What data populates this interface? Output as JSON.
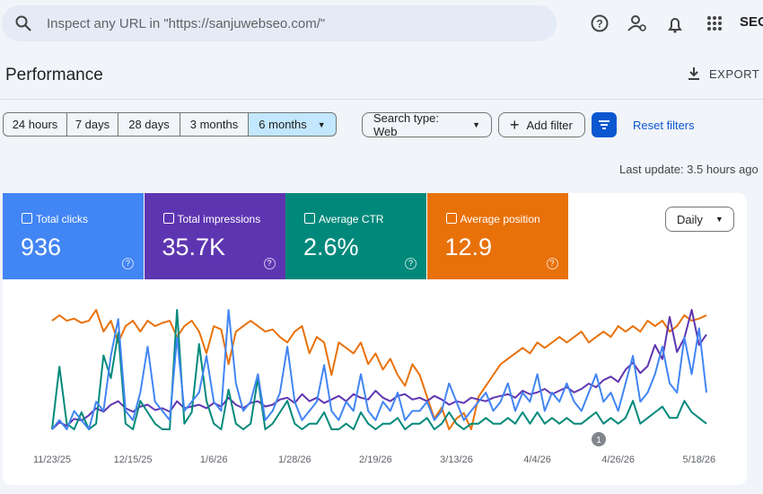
{
  "search": {
    "placeholder": "Inspect any URL in \"https://sanjuwebseo.com/\""
  },
  "logo": "SEO",
  "header": {
    "title": "Performance",
    "export": "EXPORT"
  },
  "filters": {
    "ranges": [
      "24 hours",
      "7 days",
      "28 days",
      "3 months",
      "6 months"
    ],
    "search_type": "Search type: Web",
    "add_filter": "Add filter",
    "reset": "Reset filters"
  },
  "last_update": "Last update: 3.5 hours ago",
  "granularity": "Daily",
  "chart_data": {
    "type": "line",
    "categories": [
      "11/23/25",
      null,
      null,
      null,
      null,
      null,
      null,
      null,
      null,
      null,
      null,
      "12/15/25",
      null,
      null,
      null,
      null,
      null,
      null,
      null,
      null,
      null,
      null,
      "1/6/26",
      null,
      null,
      null,
      null,
      null,
      null,
      null,
      null,
      null,
      null,
      "1/28/26",
      null,
      null,
      null,
      null,
      null,
      null,
      null,
      null,
      null,
      null,
      "2/19/26",
      null,
      null,
      null,
      null,
      null,
      null,
      null,
      null,
      null,
      null,
      "3/13/26",
      null,
      null,
      null,
      null,
      null,
      null,
      null,
      null,
      null,
      null,
      "4/4/26",
      null,
      null,
      null,
      null,
      null,
      null,
      null,
      null,
      null,
      null,
      "4/26/26",
      null,
      null,
      null,
      null,
      null,
      null,
      null,
      null,
      null,
      null,
      "5/18/26",
      null
    ],
    "annotations": [
      "1"
    ],
    "series": [
      {
        "name": "Total clicks",
        "total": "936",
        "color": "#4285f4",
        "values": [
          0,
          1,
          0,
          2,
          1,
          0,
          3,
          2,
          8,
          12,
          2,
          1,
          4,
          9,
          3,
          2,
          1,
          10,
          2,
          3,
          4,
          8,
          3,
          2,
          13,
          5,
          2,
          3,
          6,
          1,
          2,
          4,
          9,
          3,
          1,
          2,
          3,
          7,
          2,
          1,
          3,
          2,
          6,
          2,
          1,
          3,
          2,
          4,
          1,
          2,
          2,
          3,
          1,
          2,
          5,
          3,
          1,
          2,
          3,
          4,
          2,
          3,
          5,
          2,
          4,
          3,
          6,
          2,
          4,
          3,
          5,
          3,
          2,
          4,
          6,
          3,
          4,
          2,
          5,
          8,
          3,
          4,
          6,
          9,
          5,
          4,
          10,
          6,
          11,
          4
        ]
      },
      {
        "name": "Total impressions",
        "total": "35.7K",
        "color": "#5e35b1",
        "values": [
          60,
          80,
          70,
          90,
          85,
          100,
          120,
          110,
          130,
          140,
          120,
          110,
          125,
          130,
          115,
          120,
          110,
          140,
          120,
          125,
          130,
          120,
          135,
          125,
          150,
          130,
          120,
          135,
          140,
          125,
          130,
          145,
          150,
          135,
          160,
          140,
          150,
          135,
          145,
          155,
          140,
          160,
          150,
          145,
          170,
          150,
          140,
          155,
          160,
          145,
          150,
          140,
          155,
          145,
          130,
          140,
          135,
          150,
          145,
          140,
          150,
          155,
          160,
          150,
          170,
          160,
          165,
          175,
          160,
          170,
          180,
          165,
          175,
          190,
          180,
          200,
          210,
          195,
          230,
          250,
          220,
          240,
          300,
          260,
          380,
          280,
          320,
          400,
          300,
          330
        ]
      },
      {
        "name": "Average CTR",
        "total": "2.6%",
        "color": "#00897b",
        "values": [
          0.5,
          6,
          1,
          0.5,
          2,
          0.5,
          1,
          7,
          5,
          9,
          1,
          0.5,
          3,
          2,
          1,
          0.5,
          0.5,
          11,
          1,
          2,
          8,
          3,
          1,
          0.5,
          4,
          1,
          0.5,
          1,
          5,
          0.5,
          1,
          2,
          3,
          1,
          0.5,
          1,
          1,
          2,
          0.5,
          0.5,
          1,
          0.5,
          2,
          1,
          0.5,
          1,
          1,
          1.5,
          0.5,
          1,
          1,
          1.5,
          0.5,
          1,
          2,
          1,
          0.5,
          1,
          1,
          1.5,
          1,
          1,
          1.5,
          1,
          2,
          1,
          2,
          1,
          1.5,
          1,
          1.5,
          1,
          1,
          1.5,
          2,
          1,
          1.5,
          1,
          1.5,
          3,
          1,
          1.5,
          2,
          2.5,
          1.5,
          1.5,
          3,
          2,
          1.5,
          1
        ]
      },
      {
        "name": "Average position",
        "total": "12.9",
        "color": "#e8710a",
        "reversed": true,
        "values": [
          10,
          9.5,
          10,
          9.8,
          10.2,
          10,
          9,
          11,
          10,
          12,
          10.5,
          10,
          11,
          10,
          10.5,
          10.2,
          10,
          11.5,
          10.5,
          10,
          11,
          13,
          10.5,
          10.8,
          14,
          11,
          10.5,
          10,
          10.5,
          11,
          10.8,
          11.5,
          12,
          11,
          10.5,
          13,
          11.5,
          12,
          15,
          12,
          12.5,
          13,
          12,
          14,
          13,
          14.5,
          13.5,
          15,
          16,
          14,
          15,
          17,
          19,
          18,
          20,
          19,
          18.5,
          20,
          17,
          16,
          15,
          14,
          13.5,
          13,
          12.5,
          13,
          12,
          12.5,
          12,
          11.5,
          12,
          11.5,
          11,
          12,
          11.5,
          11,
          11.5,
          10.5,
          11,
          10.5,
          11,
          10,
          10.5,
          10,
          11,
          10.5,
          9.5,
          10,
          9.8,
          9.5
        ]
      }
    ]
  }
}
